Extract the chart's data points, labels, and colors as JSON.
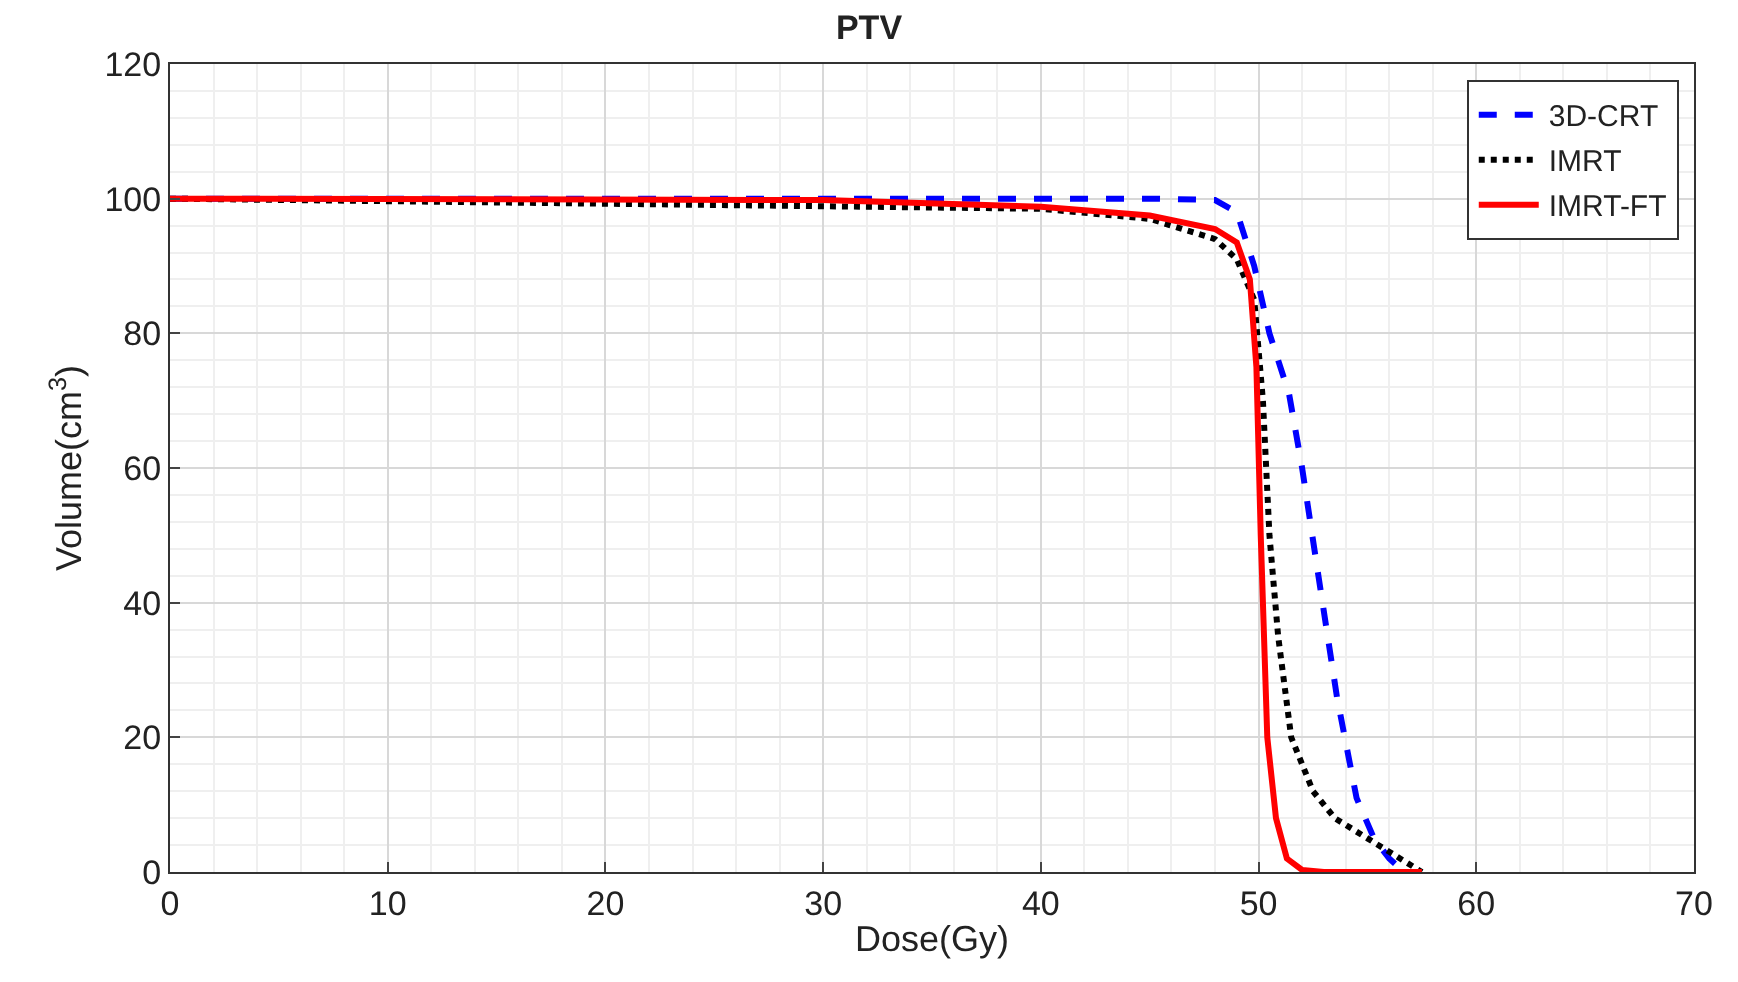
{
  "chart_data": {
    "type": "line",
    "title": "PTV",
    "xlabel": "Dose(Gy)",
    "ylabel": "Volume(cm$^{3}$)",
    "xlim": [
      0,
      70
    ],
    "xticks": [
      0,
      10,
      20,
      30,
      40,
      50,
      60,
      70
    ],
    "ylim": [
      0,
      120
    ],
    "yticks": [
      0,
      20,
      40,
      60,
      80,
      100,
      120
    ],
    "grid": true,
    "legend": "top right",
    "series": [
      {
        "name": "3D-CRT",
        "color": "#0000ff",
        "line_style": "dashed",
        "x": [
          0,
          45,
          48,
          49,
          49.8,
          50.5,
          51.4,
          52,
          52.7,
          53.6,
          54.5,
          55.3,
          56,
          56.7,
          57.5
        ],
        "values": [
          100,
          100,
          99.8,
          98,
          90,
          80,
          71,
          60,
          45,
          26,
          11,
          5,
          2,
          0,
          0
        ]
      },
      {
        "name": "IMRT",
        "color": "#000000",
        "line_style": "dotted",
        "x": [
          0,
          40,
          45,
          48,
          49,
          49.8,
          50.2,
          50.5,
          50.9,
          51.5,
          52.5,
          53.5,
          55,
          56,
          57,
          57.5
        ],
        "values": [
          100,
          98.5,
          97,
          94,
          91,
          85,
          70,
          50,
          35,
          20,
          12,
          8,
          5,
          3,
          1,
          0
        ]
      },
      {
        "name": "IMRT-FT",
        "color": "#ff0000",
        "line_style": "solid",
        "x": [
          0,
          30,
          40,
          45,
          48,
          49,
          49.6,
          49.9,
          50.1,
          50.4,
          50.8,
          51.3,
          52,
          53,
          57.5
        ],
        "values": [
          100,
          99.8,
          98.8,
          97.5,
          95.5,
          93.5,
          88,
          75,
          50,
          20,
          8,
          2,
          0.3,
          0,
          0
        ]
      }
    ]
  }
}
